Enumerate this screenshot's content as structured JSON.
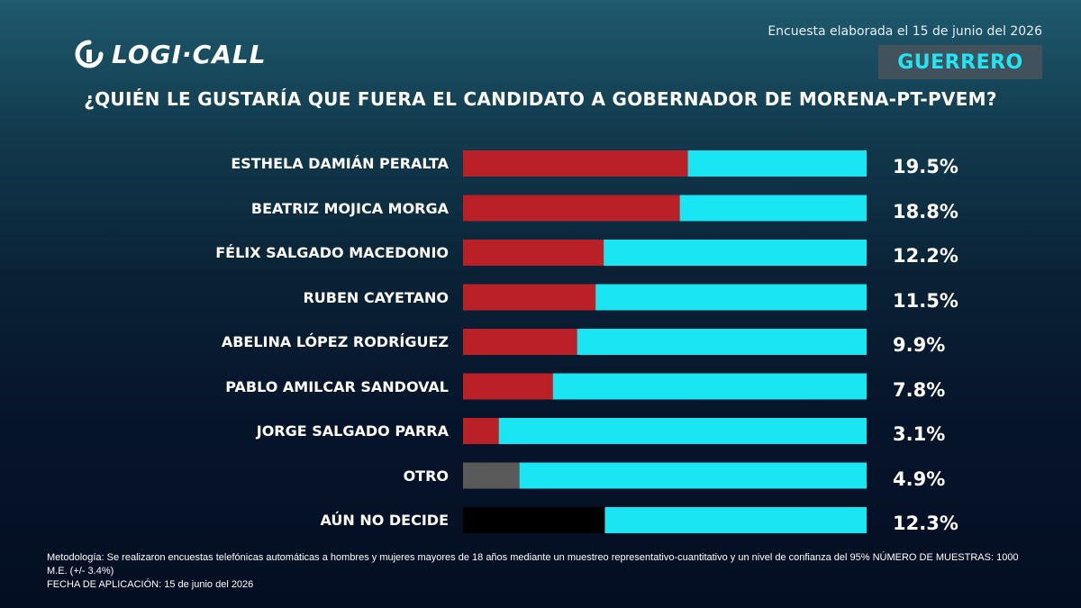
{
  "header": {
    "logo_text": "LOGI·CALL",
    "survey_date": "Encuesta elaborada el 15 de junio del 2026",
    "region": "GUERRERO"
  },
  "colors": {
    "bar_fill": "#b92126",
    "bar_track": "#18e6f2",
    "otro_fill": "#5a5a5a",
    "undecided_fill": "#000000",
    "region_text": "#1fe6f5"
  },
  "chart_data": {
    "type": "bar",
    "orientation": "horizontal",
    "title": "¿QUIÉN LE GUSTARÍA QUE FUERA EL CANDIDATO A GOBERNADOR DE MORENA-PT-PVEM?",
    "categories": [
      "ESTHELA DAMIÁN PERALTA",
      "BEATRIZ MOJICA MORGA",
      "FÉLIX SALGADO MACEDONIO",
      "RUBEN CAYETANO",
      "ABELINA LÓPEZ RODRÍGUEZ",
      "PABLO AMILCAR SANDOVAL",
      "JORGE SALGADO PARRA",
      "OTRO",
      "AÚN NO DECIDE"
    ],
    "values": [
      19.5,
      18.8,
      12.2,
      11.5,
      9.9,
      7.8,
      3.1,
      4.9,
      12.3
    ],
    "value_labels": [
      "19.5%",
      "18.8%",
      "12.2%",
      "11.5%",
      "9.9%",
      "7.8%",
      "3.1%",
      "4.9%",
      "12.3%"
    ],
    "fill_colors": [
      "#b92126",
      "#b92126",
      "#b92126",
      "#b92126",
      "#b92126",
      "#b92126",
      "#b92126",
      "#5a5a5a",
      "#000000"
    ],
    "xlim": [
      0,
      35
    ]
  },
  "footer": {
    "methodology": "Metodología: Se realizaron encuestas telefónicas automáticas a hombres y mujeres mayores de 18 años mediante un muestreo representativo-cuantitativo y un nivel de confianza del 95% NÚMERO DE MUESTRAS: 1000 M.E. (+/- 3.4%)",
    "application_date": "FECHA DE APLICACIÓN: 15 de junio del 2026"
  }
}
